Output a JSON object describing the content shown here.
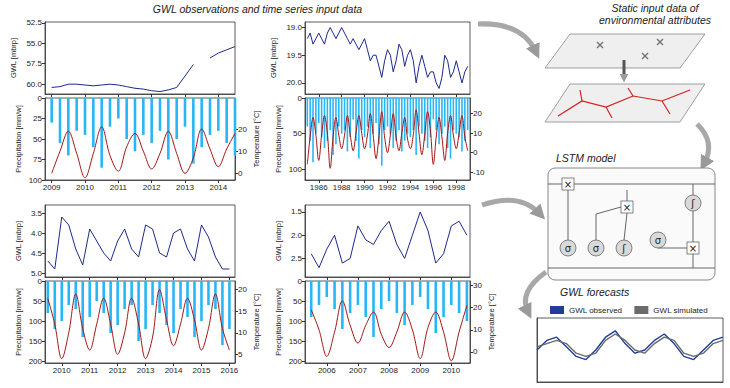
{
  "title": "GWL observations and time series input data",
  "chart_data": [
    {
      "type": "line",
      "ylabel": "GWL [mbrp]",
      "x": [
        2009,
        2009.25,
        2009.5,
        2009.75,
        2010,
        2010.25,
        2010.5,
        2010.75,
        2011,
        2011.25,
        2011.5,
        2011.75,
        2012,
        2012.25,
        2012.5,
        2012.75,
        2013,
        2013.25,
        2013.5,
        2013.75,
        2014,
        2014.25,
        2014.5
      ],
      "values": [
        60.4,
        60.3,
        60.0,
        60.0,
        60.1,
        60.2,
        60.1,
        60.0,
        60.1,
        60.3,
        60.5,
        60.6,
        60.8,
        60.9,
        60.7,
        60.4,
        59.0,
        57.6,
        null,
        56.8,
        56.2,
        55.8,
        55.4
      ],
      "color": "#1c2a8c",
      "xlim": [
        2008.8,
        2014.5
      ],
      "xticks": [
        2009,
        2010,
        2011,
        2012,
        2013,
        2014
      ],
      "ylim": [
        61.2,
        52.4
      ],
      "yticks": [
        52.5,
        {
          "value": 55,
          "label": "55.0"
        },
        57.5,
        {
          "value": 60,
          "label": "60.0"
        }
      ],
      "tick_labels": "y",
      "grid": false
    },
    {
      "type": "bar",
      "ylabel": "Precipitation [mm/w]",
      "y2label": "Temperature [°C]",
      "x": [
        2009,
        2009.25,
        2009.5,
        2009.75,
        2010,
        2010.25,
        2010.5,
        2010.75,
        2011,
        2011.25,
        2011.5,
        2011.75,
        2012,
        2012.25,
        2012.5,
        2012.75,
        2013,
        2013.25,
        2013.5,
        2013.75,
        2014,
        2014.25,
        2014.5
      ],
      "series": [
        {
          "type": "bar",
          "color": "#29b6f6",
          "values": [
            30,
            55,
            70,
            40,
            45,
            60,
            85,
            35,
            25,
            50,
            65,
            45,
            55,
            40,
            75,
            50,
            35,
            80,
            60,
            45,
            40,
            55,
            70
          ]
        },
        {
          "type": "line",
          "axis": "y2",
          "color": "#a31515",
          "values": [
            0,
            10,
            19,
            9,
            -2,
            9,
            21,
            8,
            1,
            12,
            18,
            10,
            2,
            9,
            19,
            9,
            0,
            7,
            20,
            11,
            3,
            11,
            18
          ]
        }
      ],
      "xlim": [
        2008.8,
        2014.5
      ],
      "xticks": [
        2009,
        2010,
        2011,
        2012,
        2013,
        2014
      ],
      "ylim": [
        100,
        0
      ],
      "yticks": [
        0,
        25,
        50,
        75,
        100
      ],
      "y2lim": [
        -3,
        34
      ],
      "y2ticks": [
        0,
        10,
        20
      ],
      "grid": false
    },
    {
      "type": "line",
      "ylabel": "GWL [mbrp]",
      "x": [
        1985,
        1985.25,
        1985.5,
        1985.75,
        1986,
        1986.25,
        1986.5,
        1986.75,
        1987,
        1987.25,
        1987.5,
        1987.75,
        1988,
        1988.25,
        1988.5,
        1988.75,
        1989,
        1989.25,
        1989.5,
        1989.75,
        1990,
        1990.25,
        1990.5,
        1990.75,
        1991,
        1991.25,
        1991.5,
        1991.75,
        1992,
        1992.25,
        1992.5,
        1992.75,
        1993,
        1993.25,
        1993.5,
        1993.75,
        1994,
        1994.25,
        1994.5,
        1994.75,
        1995,
        1995.25,
        1995.5,
        1995.75,
        1996,
        1996.25,
        1996.5,
        1996.75,
        1997,
        1997.25,
        1997.5,
        1997.75,
        1998,
        1998.25,
        1998.5,
        1998.75,
        1999
      ],
      "values": [
        19.2,
        19.1,
        19.3,
        19.2,
        19.1,
        19.2,
        19.3,
        19.1,
        19.0,
        19.1,
        19.2,
        19.1,
        19.0,
        19.1,
        19.2,
        19.3,
        19.2,
        19.3,
        19.4,
        19.3,
        19.2,
        19.4,
        19.6,
        19.5,
        19.5,
        19.7,
        19.9,
        19.6,
        19.4,
        19.5,
        19.8,
        19.6,
        19.3,
        19.4,
        19.7,
        19.5,
        19.4,
        19.6,
        20.0,
        19.7,
        19.5,
        19.7,
        19.9,
        19.8,
        19.8,
        20.0,
        20.1,
        19.9,
        19.5,
        19.6,
        19.9,
        19.8,
        19.6,
        19.8,
        20.0,
        19.8,
        19.7
      ],
      "color": "#1c2a8c",
      "xlim": [
        1984.8,
        1999.2
      ],
      "xticks": [
        1986,
        1988,
        1990,
        1992,
        1994,
        1996,
        1998
      ],
      "ylim": [
        20.2,
        18.9
      ],
      "yticks": [
        {
          "value": 19,
          "label": "19.0"
        },
        19.5,
        {
          "value": 20,
          "label": "20.0"
        }
      ],
      "tick_labels": "y",
      "grid": false
    },
    {
      "type": "bar",
      "ylabel": "Precipitation [mm/w]",
      "x": [
        1985,
        1985.25,
        1985.5,
        1985.75,
        1986,
        1986.25,
        1986.5,
        1986.75,
        1987,
        1987.25,
        1987.5,
        1987.75,
        1988,
        1988.25,
        1988.5,
        1988.75,
        1989,
        1989.25,
        1989.5,
        1989.75,
        1990,
        1990.25,
        1990.5,
        1990.75,
        1991,
        1991.25,
        1991.5,
        1991.75,
        1992,
        1992.25,
        1992.5,
        1992.75,
        1993,
        1993.25,
        1993.5,
        1993.75,
        1994,
        1994.25,
        1994.5,
        1994.75,
        1995,
        1995.25,
        1995.5,
        1995.75,
        1996,
        1996.25,
        1996.5,
        1996.75,
        1997,
        1997.25,
        1997.5,
        1997.75,
        1998,
        1998.25,
        1998.5,
        1998.75,
        1999
      ],
      "series": [
        {
          "type": "bar",
          "color": "#29b6f6",
          "values": [
            40,
            60,
            90,
            50,
            35,
            55,
            70,
            60,
            45,
            80,
            65,
            40,
            50,
            45,
            75,
            55,
            30,
            60,
            85,
            45,
            55,
            40,
            70,
            50,
            35,
            65,
            95,
            45,
            40,
            50,
            70,
            60,
            45,
            75,
            60,
            50,
            55,
            45,
            80,
            40,
            50,
            60,
            70,
            55,
            30,
            45,
            65,
            50,
            40,
            70,
            85,
            45,
            50,
            55,
            75,
            60,
            45
          ]
        },
        {
          "type": "line",
          "axis": "y2",
          "color": "#a31515",
          "values": [
            -6,
            8,
            18,
            9,
            -4,
            9,
            19,
            10,
            -8,
            8,
            18,
            9,
            2,
            9,
            19,
            9,
            1,
            10,
            19,
            10,
            2,
            9,
            20,
            9,
            -3,
            8,
            21,
            8,
            0,
            9,
            20,
            8,
            1,
            10,
            18,
            7,
            2,
            9,
            22,
            10,
            -1,
            9,
            21,
            11,
            -6,
            8,
            18,
            8,
            -4,
            10,
            19,
            9,
            2,
            10,
            19,
            8,
            1
          ]
        }
      ],
      "xlim": [
        1984.8,
        1999.2
      ],
      "xticks": [
        1986,
        1988,
        1990,
        1992,
        1994,
        1996,
        1998
      ],
      "ylim": [
        115,
        0
      ],
      "yticks": [
        0,
        50,
        100
      ],
      "y2lim": [
        -14,
        28
      ],
      "y2ticks": [
        -10,
        0,
        10,
        20
      ],
      "grid": false
    },
    {
      "type": "line",
      "ylabel": "GWL [mbrp]",
      "x": [
        2009.5,
        2009.75,
        2010,
        2010.25,
        2010.5,
        2010.75,
        2011,
        2011.25,
        2011.5,
        2011.75,
        2012,
        2012.25,
        2012.5,
        2012.75,
        2013,
        2013.25,
        2013.5,
        2013.75,
        2014,
        2014.25,
        2014.5,
        2014.75,
        2015,
        2015.25,
        2015.5,
        2015.75,
        2016
      ],
      "values": [
        4.7,
        4.9,
        3.6,
        3.8,
        4.4,
        4.8,
        3.9,
        4.2,
        4.5,
        4.7,
        4.2,
        3.9,
        4.4,
        4.6,
        3.8,
        3.9,
        4.5,
        4.6,
        4.0,
        3.9,
        4.4,
        4.7,
        3.8,
        4.1,
        4.6,
        4.9,
        4.9
      ],
      "color": "#1c2a8c",
      "xlim": [
        2009.4,
        2016.2
      ],
      "xticks": [
        2010,
        2011,
        2012,
        2013,
        2014,
        2015,
        2016
      ],
      "ylim": [
        5.1,
        3.3
      ],
      "yticks": [
        3.5,
        {
          "value": 4,
          "label": "4.0"
        },
        4.5,
        {
          "value": 5,
          "label": "5.0"
        }
      ],
      "tick_labels": "y",
      "grid": false
    },
    {
      "type": "bar",
      "ylabel": "Precipitation [mm/w]",
      "y2label": "Temperature [°C]",
      "x": [
        2009.5,
        2009.75,
        2010,
        2010.25,
        2010.5,
        2010.75,
        2011,
        2011.25,
        2011.5,
        2011.75,
        2012,
        2012.25,
        2012.5,
        2012.75,
        2013,
        2013.25,
        2013.5,
        2013.75,
        2014,
        2014.25,
        2014.5,
        2014.75,
        2015,
        2015.25,
        2015.5,
        2015.75,
        2016
      ],
      "series": [
        {
          "type": "bar",
          "color": "#29b6f6",
          "values": [
            80,
            120,
            100,
            60,
            70,
            140,
            90,
            50,
            80,
            130,
            110,
            70,
            60,
            150,
            120,
            60,
            80,
            110,
            130,
            70,
            90,
            140,
            100,
            60,
            70,
            160,
            120
          ]
        },
        {
          "type": "line",
          "axis": "y2",
          "color": "#a31515",
          "values": [
            18,
            12,
            4,
            10,
            19,
            11,
            6,
            12,
            18,
            12,
            5,
            10,
            18,
            12,
            4,
            9,
            20,
            13,
            7,
            12,
            18,
            13,
            6,
            11,
            19,
            11,
            6
          ]
        }
      ],
      "xlim": [
        2009.4,
        2016.2
      ],
      "xticks": [
        2010,
        2011,
        2012,
        2013,
        2014,
        2015,
        2016
      ],
      "ylim": [
        205,
        0
      ],
      "yticks": [
        0,
        50,
        100,
        150,
        200
      ],
      "y2lim": [
        3,
        22
      ],
      "y2ticks": [
        5,
        10,
        15,
        20
      ],
      "grid": false
    },
    {
      "type": "line",
      "ylabel": "GWL [mbrp]",
      "x": [
        2005.5,
        2005.75,
        2006,
        2006.25,
        2006.5,
        2006.75,
        2007,
        2007.25,
        2007.5,
        2007.75,
        2008,
        2008.25,
        2008.5,
        2008.75,
        2009,
        2009.25,
        2009.5,
        2009.75,
        2010,
        2010.25,
        2010.5
      ],
      "values": [
        2.4,
        2.7,
        2.3,
        2.0,
        2.6,
        2.5,
        1.8,
        2.1,
        2.2,
        1.9,
        1.7,
        2.2,
        2.5,
        2.0,
        1.5,
        1.9,
        2.6,
        2.4,
        1.8,
        1.7,
        2.0
      ],
      "color": "#1c2a8c",
      "xlim": [
        2005.3,
        2010.6
      ],
      "xticks": [
        2006,
        2007,
        2008,
        2009,
        2010
      ],
      "ylim": [
        2.9,
        1.35
      ],
      "yticks": [
        1.5,
        {
          "value": 2,
          "label": "2.0"
        },
        2.5
      ],
      "tick_labels": "y",
      "grid": false
    },
    {
      "type": "bar",
      "ylabel": "Precipitation [mm/w]",
      "y2label": "Temperature [°C]",
      "x": [
        2005.5,
        2005.75,
        2006,
        2006.25,
        2006.5,
        2006.75,
        2007,
        2007.25,
        2007.5,
        2007.75,
        2008,
        2008.25,
        2008.5,
        2008.75,
        2009,
        2009.25,
        2009.5,
        2009.75,
        2010,
        2010.25,
        2010.5
      ],
      "series": [
        {
          "type": "bar",
          "color": "#29b6f6",
          "values": [
            90,
            60,
            40,
            70,
            120,
            80,
            60,
            90,
            140,
            70,
            50,
            80,
            110,
            60,
            40,
            70,
            130,
            90,
            60,
            80,
            100
          ]
        },
        {
          "type": "line",
          "axis": "y2",
          "color": "#a31515",
          "values": [
            19,
            10,
            -2,
            9,
            23,
            12,
            4,
            12,
            18,
            8,
            2,
            9,
            18,
            10,
            -3,
            11,
            18,
            9,
            -4,
            9,
            21
          ]
        }
      ],
      "xlim": [
        2005.3,
        2010.6
      ],
      "xticks": [
        2006,
        2007,
        2008,
        2009,
        2010
      ],
      "ylim": [
        205,
        0
      ],
      "yticks": [
        0,
        50,
        100,
        150,
        200
      ],
      "y2lim": [
        -5,
        32
      ],
      "y2ticks": [
        0,
        10,
        20,
        30
      ],
      "grid": false
    },
    {
      "type": "line",
      "x": [
        1,
        2,
        3,
        4,
        5,
        6,
        7,
        8,
        9,
        10,
        11,
        12,
        13,
        14,
        15,
        16,
        17,
        18,
        19,
        20
      ],
      "series": [
        {
          "name": "GWL observed",
          "color": "#1f3d99",
          "values": [
            5,
            6.5,
            7,
            5.5,
            4,
            3.5,
            5,
            7,
            8,
            6,
            4.5,
            5,
            6.5,
            7.5,
            6,
            4,
            3.5,
            5,
            6.5,
            7
          ]
        },
        {
          "name": "GWL simulated",
          "color": "#6b6b6b",
          "values": [
            5.5,
            6,
            6.5,
            6,
            4.5,
            4,
            4.5,
            6.5,
            7.5,
            6.5,
            5,
            4.5,
            6,
            7,
            6.5,
            4.5,
            4,
            4.5,
            6,
            6.5
          ]
        }
      ],
      "xlim": [
        1,
        20
      ],
      "ylim": [
        0,
        10
      ],
      "legend": "top",
      "tick_labels": false,
      "grid": false
    }
  ],
  "diagram": {
    "static_title": "Static input data of environmental attributes",
    "lstm_title": "LSTM model",
    "lstm_gates": [
      "σ",
      "σ",
      "ʃ",
      "σ",
      "ʃ"
    ],
    "lstm_ops": [
      "×",
      "×",
      "×"
    ],
    "forecast_title": "GWL forecasts"
  }
}
